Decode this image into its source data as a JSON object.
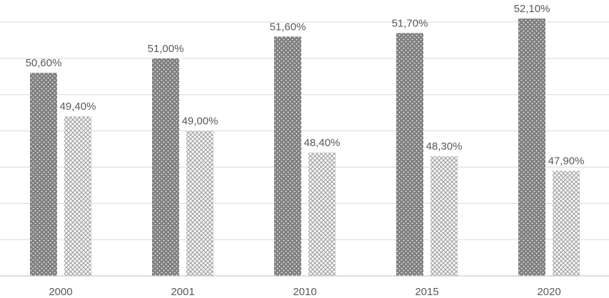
{
  "chart_data": {
    "type": "bar",
    "categories": [
      "2000",
      "2001",
      "2010",
      "2015",
      "2020"
    ],
    "series": [
      {
        "values": [
          50.6,
          51.0,
          51.6,
          51.7,
          52.1
        ],
        "labels": [
          "50,60%",
          "51,00%",
          "51,60%",
          "51,70%",
          "52,10%"
        ],
        "color": "#7f7f7f",
        "pattern": "dots"
      },
      {
        "values": [
          49.4,
          49.0,
          48.4,
          48.3,
          47.9
        ],
        "labels": [
          "49,40%",
          "49,00%",
          "48,40%",
          "48,30%",
          "47,90%"
        ],
        "color": "#bfbfbf",
        "pattern": "crosshatch"
      }
    ],
    "title": "",
    "xlabel": "",
    "ylabel": "",
    "ylim": [
      45.0,
      52.0
    ],
    "grid": true,
    "legend": "none"
  }
}
